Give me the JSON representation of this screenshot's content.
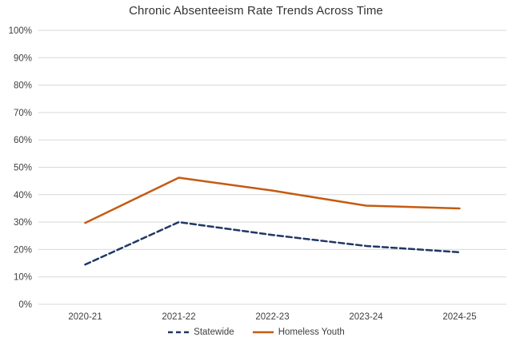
{
  "title": "Chronic Absenteeism Rate Trends Across Time",
  "chart_data": {
    "type": "line",
    "title": "Chronic Absenteeism Rate Trends Across Time",
    "categories": [
      "2020-21",
      "2021-22",
      "2022-23",
      "2023-24",
      "2024-25"
    ],
    "series": [
      {
        "name": "Statewide",
        "values": [
          14.5,
          30,
          25.3,
          21.3,
          19
        ],
        "color": "#1f3864",
        "dashed": true
      },
      {
        "name": "Homeless Youth",
        "values": [
          29.7,
          46.2,
          41.5,
          36,
          35
        ],
        "color": "#c55a11",
        "dashed": false
      }
    ],
    "xlabel": "",
    "ylabel": "",
    "ylim": [
      0,
      100
    ],
    "ytick_step": 10,
    "ytick_suffix": "%",
    "grid": true,
    "gridline_color": "#d9d9d9",
    "text_color": "#3f3f3f",
    "legend_position": "bottom"
  }
}
